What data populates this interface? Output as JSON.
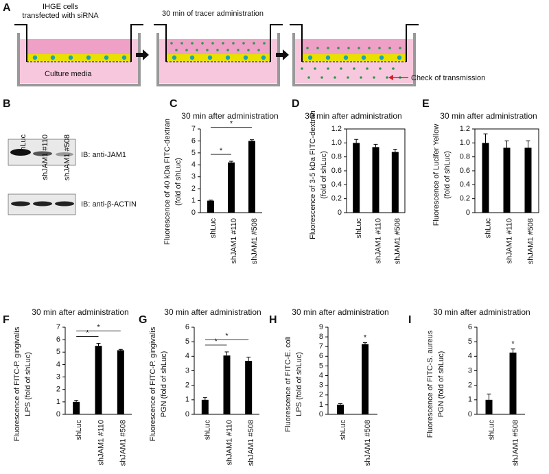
{
  "panel_a": {
    "panel": "A",
    "step1": [
      "IHGE cells",
      "transfected with siRNA"
    ],
    "media": "Culture media",
    "step2": "30 min of tracer administration",
    "step3": "Check of transmission"
  },
  "panel_b": {
    "panel": "B",
    "lanes": [
      "shLuc",
      "shJAM1 #110",
      "shJAM1 #508"
    ],
    "blots": [
      "IB: anti-JAM1",
      "IB: anti-β-ACTIN"
    ]
  },
  "chart_data": [
    {
      "panel": "C",
      "type": "bar",
      "title": "30 min after administration",
      "ylabel": [
        "Fluorescence of 40 kDa FITC-dextran",
        "(fold of shLuc)"
      ],
      "categories": [
        "shLuc",
        "shJAM1 #110",
        "shJAM1 #508"
      ],
      "values": [
        1.0,
        4.2,
        6.0
      ],
      "errors": [
        0.05,
        0.1,
        0.1
      ],
      "color": "#000000",
      "ylim": [
        0,
        7
      ],
      "yticks": [
        0,
        1,
        2,
        3,
        4,
        5,
        6,
        7
      ],
      "frame": false,
      "significance": [
        {
          "between": [
            "shLuc",
            "shJAM1 #110"
          ],
          "label": "*"
        },
        {
          "between": [
            "shLuc",
            "shJAM1 #508"
          ],
          "label": "*"
        }
      ]
    },
    {
      "panel": "D",
      "type": "bar",
      "title": "30 min after administration",
      "ylabel": [
        "Fluorescence of 3-5 kDa FITC-dextran",
        "(fold of shLuc)"
      ],
      "categories": [
        "shLuc",
        "shJAM1 #110",
        "shJAM1 #508"
      ],
      "values": [
        1.0,
        0.94,
        0.87
      ],
      "errors": [
        0.05,
        0.04,
        0.04
      ],
      "color": "#000000",
      "ylim": [
        0,
        1.2
      ],
      "yticks": [
        0,
        0.2,
        0.4,
        0.6,
        0.8,
        {
          "value": 1,
          "label": "1.0"
        },
        1.2
      ],
      "frame": true,
      "significance": []
    },
    {
      "panel": "E",
      "type": "bar",
      "title": "30 min after administration",
      "ylabel": [
        "Fluorescence of Lucifer Yellow",
        "(fold of shLuc)"
      ],
      "categories": [
        "shLuc",
        "shJAM1 #110",
        "shJAM1 #508"
      ],
      "values": [
        1.0,
        0.93,
        0.93
      ],
      "errors": [
        0.13,
        0.1,
        0.1
      ],
      "color": "#000000",
      "ylim": [
        0,
        1.2
      ],
      "yticks": [
        0,
        0.2,
        0.4,
        0.6,
        0.8,
        {
          "value": 1,
          "label": "1.0"
        },
        1.2
      ],
      "frame": true,
      "significance": []
    },
    {
      "panel": "F",
      "type": "bar",
      "title": "30 min after administration",
      "ylabel": [
        "Fluorescence of FITC-P. gingivalis",
        "LPS (fold of shLuc)"
      ],
      "categories": [
        "shLuc",
        "shJAM1 #110",
        "shJAM1 #508"
      ],
      "values": [
        1.0,
        5.5,
        5.15
      ],
      "errors": [
        0.12,
        0.2,
        0.07
      ],
      "color": "#000000",
      "ylim": [
        0,
        7
      ],
      "yticks": [
        0,
        1,
        2,
        3,
        4,
        5,
        6,
        7
      ],
      "frame": false,
      "significance": [
        {
          "between": [
            "shLuc",
            "shJAM1 #110"
          ],
          "label": "*"
        },
        {
          "between": [
            "shLuc",
            "shJAM1 #508"
          ],
          "label": "*"
        }
      ]
    },
    {
      "panel": "G",
      "type": "bar",
      "title": "30 min after administration",
      "ylabel": [
        "Fluorescence of FITC-P. gingivalis",
        "PGN (fold of shLuc)"
      ],
      "categories": [
        "shLuc",
        "shJAM1 #110",
        "shJAM1 #508"
      ],
      "values": [
        1.0,
        4.05,
        3.68
      ],
      "errors": [
        0.15,
        0.25,
        0.25
      ],
      "color": "#000000",
      "ylim": [
        0,
        6
      ],
      "yticks": [
        0,
        1,
        2,
        3,
        4,
        5,
        6
      ],
      "frame": false,
      "significance": [
        {
          "between": [
            "shLuc",
            "shJAM1 #110"
          ],
          "label": "*"
        },
        {
          "between": [
            "shLuc",
            "shJAM1 #508"
          ],
          "label": "*"
        }
      ]
    },
    {
      "panel": "H",
      "type": "bar",
      "title": "30 min after administration",
      "ylabel": [
        "Fluorescence of FITC-E. coli",
        "LPS (fold of shLuc)"
      ],
      "categories": [
        "shLuc",
        "shJAM1 #508"
      ],
      "values": [
        1.0,
        7.25
      ],
      "errors": [
        0.1,
        0.15
      ],
      "color": "#000000",
      "ylim": [
        0,
        9
      ],
      "yticks": [
        0,
        1,
        2,
        3,
        4,
        5,
        6,
        7,
        8,
        9
      ],
      "frame": false,
      "significance": [
        {
          "bar": "shJAM1 #508",
          "label": "*"
        }
      ]
    },
    {
      "panel": "I",
      "type": "bar",
      "title": "30 min after administration",
      "ylabel": [
        "Fluorescence of FITC-S. aureus",
        "PGN (fold of shLuc)"
      ],
      "categories": [
        "shLuc",
        "shJAM1 #508"
      ],
      "values": [
        1.0,
        4.25
      ],
      "errors": [
        0.4,
        0.25
      ],
      "color": "#000000",
      "ylim": [
        0,
        6
      ],
      "yticks": [
        0,
        1,
        2,
        3,
        4,
        5,
        6
      ],
      "frame": false,
      "significance": [
        {
          "bar": "shJAM1 #508",
          "label": "*"
        }
      ]
    }
  ]
}
